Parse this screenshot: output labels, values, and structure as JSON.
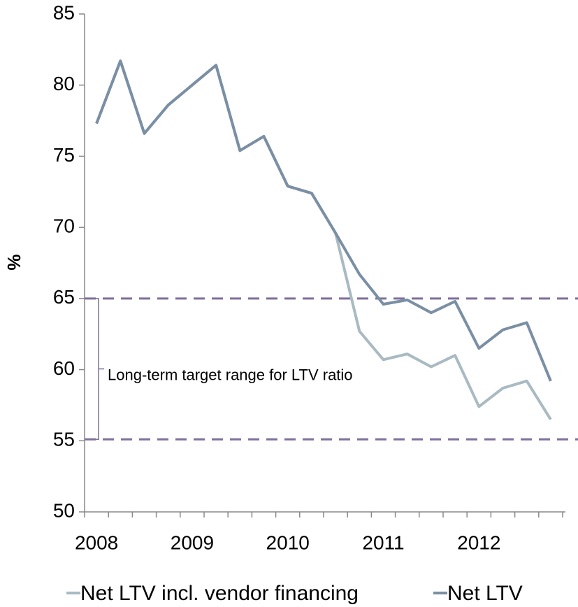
{
  "chart_data": {
    "type": "line",
    "ylabel": "%",
    "categories": [
      "2008",
      null,
      null,
      null,
      "2009",
      null,
      null,
      null,
      "2010",
      null,
      null,
      null,
      "2011",
      null,
      null,
      null,
      "2012",
      null,
      null,
      null
    ],
    "series": [
      {
        "name": "Net LTV incl. vendor financing",
        "color": "#a9bac3",
        "values": [
          77.3,
          81.7,
          76.6,
          78.6,
          80.0,
          81.4,
          75.4,
          76.4,
          72.9,
          72.4,
          69.6,
          62.7,
          60.7,
          61.1,
          60.2,
          61.0,
          57.4,
          58.7,
          59.2,
          56.5
        ]
      },
      {
        "name": "Net LTV",
        "color": "#7b8fa4",
        "values": [
          77.3,
          81.7,
          76.6,
          78.6,
          80.0,
          81.4,
          75.4,
          76.4,
          72.9,
          72.4,
          69.6,
          66.7,
          64.6,
          64.9,
          64.0,
          64.8,
          61.5,
          62.8,
          63.3,
          59.2
        ]
      }
    ],
    "target_range": [
      55.1,
      65
    ],
    "target_range_color": "#7f6f9a",
    "annotation": "Long-term target range for LTV ratio",
    "ylim": [
      50,
      85
    ],
    "yticks": [
      50,
      55,
      60,
      65,
      70,
      75,
      80,
      85
    ]
  }
}
